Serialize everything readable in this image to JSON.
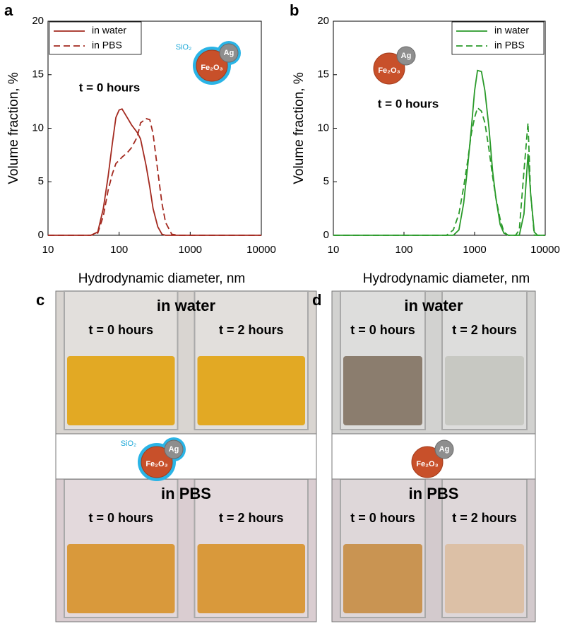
{
  "chart_data": [
    {
      "type": "line",
      "panel": "a",
      "xlabel": "Hydrodynamic diameter, nm",
      "ylabel": "Volume fraction, %",
      "annotation": "t = 0 hours",
      "log_x": true,
      "legend": "top-left",
      "particle": {
        "core": "Fe₂O₃",
        "satellite": "Ag",
        "shell": "SiO₂"
      },
      "x": [
        10,
        40,
        50,
        60,
        70,
        80,
        90,
        100,
        110,
        130,
        150,
        180,
        200,
        240,
        270,
        300,
        350,
        400,
        450,
        550,
        700,
        10000
      ],
      "series": [
        {
          "name": "in water",
          "color": "#a3291f",
          "dashed": false,
          "values": [
            0,
            0,
            0.3,
            2.5,
            5.5,
            8.5,
            11,
            11.7,
            11.8,
            11,
            10.3,
            9.6,
            9,
            6.5,
            4.5,
            2.5,
            0.8,
            0.1,
            0,
            0,
            0,
            0
          ]
        },
        {
          "name": "in PBS",
          "color": "#a3291f",
          "dashed": true,
          "values": [
            0,
            0,
            0.2,
            1.8,
            4.2,
            5.7,
            6.7,
            7,
            7.3,
            7.7,
            8.2,
            9.2,
            10.5,
            10.9,
            10.8,
            9.5,
            6,
            3,
            1.2,
            0.1,
            0,
            0
          ]
        }
      ],
      "xlim": [
        10,
        10000
      ],
      "xticks": [
        10,
        100,
        1000,
        10000
      ],
      "ylim": [
        0,
        20
      ],
      "yticks": [
        0,
        5,
        10,
        15,
        20
      ]
    },
    {
      "type": "line",
      "panel": "b",
      "xlabel": "Hydrodynamic diameter, nm",
      "ylabel": "Volume fraction, %",
      "annotation": "t = 0 hours",
      "log_x": true,
      "legend": "top-right",
      "particle": {
        "core": "Fe₂O₃",
        "satellite": "Ag"
      },
      "x": [
        10,
        400,
        500,
        600,
        700,
        800,
        900,
        1000,
        1100,
        1250,
        1400,
        1600,
        1800,
        2000,
        2300,
        2600,
        3000,
        3800,
        4300,
        5000,
        5700,
        6200,
        7000,
        7800,
        10000
      ],
      "series": [
        {
          "name": "in water",
          "color": "#2a9a2a",
          "dashed": false,
          "values": [
            0,
            0,
            0,
            0.5,
            3,
            6.5,
            10,
            13.5,
            15.4,
            15.3,
            13.5,
            10,
            6,
            3.5,
            1,
            0.2,
            0,
            0,
            0,
            2,
            7.6,
            4,
            0.3,
            0,
            0
          ]
        },
        {
          "name": "in PBS",
          "color": "#2a9a2a",
          "dashed": true,
          "values": [
            0,
            0,
            0.5,
            2,
            4.5,
            7,
            9.5,
            11,
            11.9,
            11.6,
            10.5,
            8,
            5.5,
            3.5,
            1.5,
            0.3,
            0,
            0,
            0.5,
            6,
            10.5,
            4,
            0,
            0,
            0
          ]
        }
      ],
      "xlim": [
        10,
        10000
      ],
      "xticks": [
        10,
        100,
        1000,
        10000
      ],
      "ylim": [
        0,
        20
      ],
      "yticks": [
        0,
        5,
        10,
        15,
        20
      ]
    }
  ],
  "photos": [
    {
      "panel": "c",
      "particle": {
        "core": "Fe₂O₃",
        "satellite": "Ag",
        "shell": "SiO₂"
      },
      "top": {
        "medium": "in water",
        "samples": [
          {
            "label": "t = 0 hours",
            "color": "#e2a924"
          },
          {
            "label": "t = 2 hours",
            "color": "#e2a924"
          }
        ]
      },
      "bottom": {
        "medium": "in PBS",
        "samples": [
          {
            "label": "t = 0 hours",
            "color": "#d9993b"
          },
          {
            "label": "t = 2 hours",
            "color": "#d9993b"
          }
        ]
      }
    },
    {
      "panel": "d",
      "particle": {
        "core": "Fe₂O₃",
        "satellite": "Ag"
      },
      "top": {
        "medium": "in water",
        "samples": [
          {
            "label": "t = 0 hours",
            "color": "#8b7d6e"
          },
          {
            "label": "t = 2 hours",
            "color": "#c7c8c2"
          }
        ]
      },
      "bottom": {
        "medium": "in PBS",
        "samples": [
          {
            "label": "t = 0 hours",
            "color": "#c99452"
          },
          {
            "label": "t = 2 hours",
            "color": "#dcc0a6"
          }
        ]
      }
    }
  ]
}
